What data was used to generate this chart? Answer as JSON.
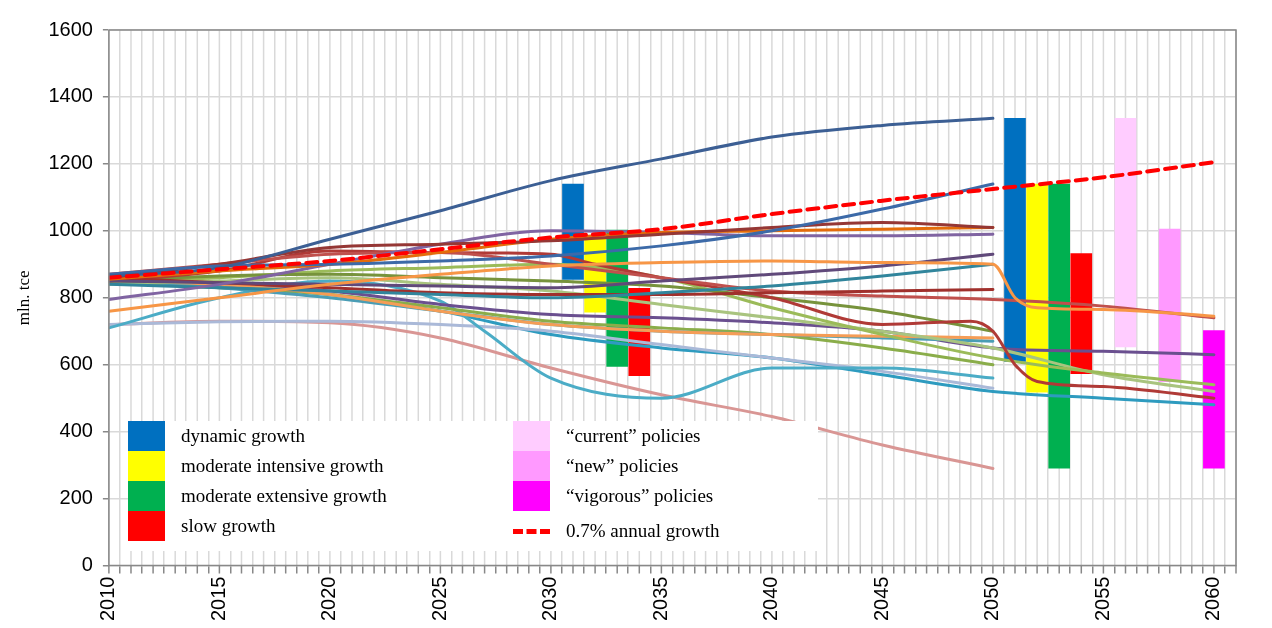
{
  "chart_data": {
    "type": "line",
    "ylabel": "mln. tce",
    "xlim": [
      2010,
      2061
    ],
    "ylim": [
      0,
      1600
    ],
    "yticks": [
      0,
      200,
      400,
      600,
      800,
      1000,
      1200,
      1400,
      1600
    ],
    "xticks": [
      2010,
      {
        "value": 2011,
        "label": null
      },
      {
        "value": 2012,
        "label": null
      },
      {
        "value": 2013,
        "label": null
      },
      {
        "value": 2014,
        "label": null
      },
      2015,
      {
        "value": 2016,
        "label": null
      },
      {
        "value": 2017,
        "label": null
      },
      {
        "value": 2018,
        "label": null
      },
      {
        "value": 2019,
        "label": null
      },
      2020,
      {
        "value": 2021,
        "label": null
      },
      {
        "value": 2022,
        "label": null
      },
      {
        "value": 2023,
        "label": null
      },
      {
        "value": 2024,
        "label": null
      },
      2025,
      {
        "value": 2026,
        "label": null
      },
      {
        "value": 2027,
        "label": null
      },
      {
        "value": 2028,
        "label": null
      },
      {
        "value": 2029,
        "label": null
      },
      2030,
      {
        "value": 2031,
        "label": null
      },
      {
        "value": 2032,
        "label": null
      },
      {
        "value": 2033,
        "label": null
      },
      {
        "value": 2034,
        "label": null
      },
      2035,
      {
        "value": 2036,
        "label": null
      },
      {
        "value": 2037,
        "label": null
      },
      {
        "value": 2038,
        "label": null
      },
      {
        "value": 2039,
        "label": null
      },
      2040,
      {
        "value": 2041,
        "label": null
      },
      {
        "value": 2042,
        "label": null
      },
      {
        "value": 2043,
        "label": null
      },
      {
        "value": 2044,
        "label": null
      },
      2045,
      {
        "value": 2046,
        "label": null
      },
      {
        "value": 2047,
        "label": null
      },
      {
        "value": 2048,
        "label": null
      },
      {
        "value": 2049,
        "label": null
      },
      2050,
      {
        "value": 2051,
        "label": null
      },
      {
        "value": 2052,
        "label": null
      },
      {
        "value": 2053,
        "label": null
      },
      {
        "value": 2054,
        "label": null
      },
      2055,
      {
        "value": 2056,
        "label": null
      },
      {
        "value": 2057,
        "label": null
      },
      {
        "value": 2058,
        "label": null
      },
      {
        "value": 2059,
        "label": null
      },
      2060,
      {
        "value": 2061,
        "label": null
      }
    ],
    "grid": true,
    "legend": "bottom left",
    "marker": "none",
    "series": [
      {
        "type": "bar",
        "name": "dynamic growth",
        "color": "#0070c0",
        "x": [
          2031,
          2051
        ],
        "base": [
          855,
          610
        ],
        "values": [
          285,
          726
        ]
      },
      {
        "type": "bar",
        "name": "moderate intensive growth",
        "color": "#ffff00",
        "x": [
          2032,
          2052
        ],
        "base": [
          757,
          518
        ],
        "values": [
          221,
          622
        ]
      },
      {
        "type": "bar",
        "name": "moderate extensive growth",
        "color": "#00b050",
        "x": [
          2033,
          2053
        ],
        "base": [
          595,
          291
        ],
        "values": [
          407,
          849
        ]
      },
      {
        "type": "bar",
        "name": "slow growth",
        "color": "#ff0000",
        "x": [
          2034,
          2054
        ],
        "base": [
          567,
          573
        ],
        "values": [
          261,
          359
        ]
      },
      {
        "type": "bar",
        "name": "“current” policies",
        "color": "#ffccff",
        "x": [
          2056
        ],
        "base": [
          653
        ],
        "values": [
          683
        ]
      },
      {
        "type": "bar",
        "name": "“new” policies",
        "color": "#ff99ff",
        "x": [
          2058
        ],
        "base": [
          549
        ],
        "values": [
          456
        ]
      },
      {
        "type": "bar",
        "name": "“vigorous” policies",
        "color": "#ff00ff",
        "x": [
          2060
        ],
        "base": [
          291
        ],
        "values": [
          411
        ]
      },
      {
        "name": "0.7% annual growth",
        "color": "#ff0000",
        "line_style": "dashed",
        "x": [
          2010,
          2015,
          2020,
          2025,
          2030,
          2035,
          2040,
          2045,
          2050,
          2055,
          2060
        ],
        "values": [
          860,
          885,
          910,
          945,
          980,
          1005,
          1050,
          1090,
          1125,
          1160,
          1205
        ]
      },
      {
        "type": "line",
        "color": "#3c5f94",
        "x": [
          2010,
          2015,
          2020,
          2025,
          2030,
          2035,
          2040,
          2045,
          2050
        ],
        "values": [
          865,
          890,
          975,
          1060,
          1150,
          1215,
          1280,
          1315,
          1336
        ]
      },
      {
        "type": "line",
        "color": "#3c6aa8",
        "x": [
          2010,
          2015,
          2020,
          2025,
          2030,
          2035,
          2040,
          2045,
          2050
        ],
        "values": [
          870,
          895,
          900,
          910,
          925,
          955,
          1000,
          1065,
          1140
        ]
      },
      {
        "type": "line",
        "color": "#953735",
        "x": [
          2010,
          2015,
          2020,
          2025,
          2030,
          2035,
          2040,
          2045,
          2050
        ],
        "values": [
          860,
          900,
          950,
          960,
          970,
          990,
          1010,
          1025,
          1010
        ]
      },
      {
        "type": "line",
        "color": "#e46c0a",
        "x": [
          2010,
          2015,
          2020,
          2025,
          2030,
          2035,
          2040,
          2045,
          2050
        ],
        "values": [
          855,
          880,
          900,
          935,
          975,
          995,
          1000,
          1005,
          1010
        ]
      },
      {
        "type": "line",
        "color": "#8064a2",
        "x": [
          2010,
          2015,
          2020,
          2025,
          2030,
          2035,
          2040,
          2045,
          2050
        ],
        "values": [
          795,
          840,
          900,
          960,
          1000,
          995,
          985,
          985,
          990
        ]
      },
      {
        "type": "line",
        "color": "#f79646",
        "x": [
          2010,
          2015,
          2020,
          2025,
          2030,
          2035,
          2040,
          2045,
          2050,
          2051,
          2052,
          2055,
          2060
        ],
        "values": [
          760,
          800,
          840,
          870,
          895,
          905,
          910,
          905,
          900,
          800,
          770,
          765,
          745
        ]
      },
      {
        "type": "line",
        "color": "#60497a",
        "x": [
          2010,
          2015,
          2020,
          2025,
          2030,
          2035,
          2040,
          2045,
          2050
        ],
        "values": [
          850,
          845,
          840,
          835,
          830,
          850,
          870,
          895,
          930
        ]
      },
      {
        "type": "line",
        "color": "#31859c",
        "x": [
          2010,
          2015,
          2020,
          2025,
          2030,
          2035,
          2040,
          2045,
          2050
        ],
        "values": [
          840,
          830,
          820,
          810,
          800,
          815,
          835,
          865,
          900
        ]
      },
      {
        "type": "line",
        "color": "#a0302c",
        "x": [
          2010,
          2015,
          2020,
          2025,
          2030,
          2035,
          2040,
          2045,
          2050
        ],
        "values": [
          860,
          845,
          830,
          815,
          810,
          810,
          815,
          820,
          825
        ]
      },
      {
        "type": "line",
        "color": "#c0504d",
        "x": [
          2010,
          2015,
          2020,
          2025,
          2030,
          2035,
          2040,
          2045,
          2050,
          2055,
          2060
        ],
        "values": [
          870,
          900,
          930,
          935,
          900,
          860,
          820,
          805,
          795,
          775,
          740
        ]
      },
      {
        "type": "line",
        "color": "#b03a36",
        "x": [
          2010,
          2015,
          2020,
          2025,
          2030,
          2032,
          2035,
          2040,
          2045,
          2049,
          2050,
          2051,
          2052,
          2055,
          2060
        ],
        "values": [
          850,
          880,
          940,
          935,
          930,
          900,
          860,
          800,
          720,
          730,
          700,
          600,
          550,
          535,
          500
        ]
      },
      {
        "type": "line",
        "color": "#77933c",
        "x": [
          2010,
          2015,
          2020,
          2025,
          2030,
          2035,
          2040,
          2045,
          2050
        ],
        "values": [
          850,
          865,
          870,
          860,
          850,
          835,
          800,
          760,
          700
        ]
      },
      {
        "type": "line",
        "color": "#9bbb59",
        "x": [
          2010,
          2015,
          2020,
          2025,
          2030,
          2035,
          2040,
          2045,
          2050,
          2055,
          2060
        ],
        "values": [
          845,
          860,
          880,
          890,
          900,
          860,
          770,
          690,
          620,
          575,
          540
        ]
      },
      {
        "type": "line",
        "color": "#a9c47f",
        "x": [
          2010,
          2015,
          2020,
          2025,
          2030,
          2035,
          2040,
          2045,
          2050,
          2055,
          2060
        ],
        "values": [
          840,
          850,
          860,
          840,
          820,
          780,
          740,
          700,
          650,
          570,
          520
        ]
      },
      {
        "type": "line",
        "color": "#f59d56",
        "x": [
          2010,
          2015,
          2020,
          2025,
          2030,
          2035,
          2040,
          2045,
          2050
        ],
        "values": [
          850,
          840,
          810,
          760,
          720,
          700,
          690,
          685,
          680
        ]
      },
      {
        "type": "line",
        "color": "#4a9db5",
        "x": [
          2010,
          2015,
          2020,
          2025,
          2030,
          2035,
          2040,
          2045,
          2050
        ],
        "values": [
          855,
          830,
          800,
          760,
          720,
          700,
          690,
          680,
          670
        ]
      },
      {
        "type": "line",
        "color": "#6a4f8f",
        "x": [
          2010,
          2015,
          2020,
          2025,
          2030,
          2035,
          2040,
          2045,
          2050,
          2055,
          2060
        ],
        "values": [
          860,
          840,
          820,
          780,
          750,
          740,
          725,
          700,
          650,
          640,
          630
        ]
      },
      {
        "type": "line",
        "color": "#8aad4a",
        "x": [
          2010,
          2015,
          2020,
          2025,
          2030,
          2035,
          2040,
          2045,
          2050
        ],
        "values": [
          845,
          830,
          810,
          770,
          730,
          710,
          690,
          650,
          600
        ]
      },
      {
        "type": "line",
        "color": "#4bacc6",
        "x": [
          2010,
          2015,
          2020,
          2025,
          2027,
          2030,
          2035,
          2040,
          2045,
          2050
        ],
        "values": [
          710,
          800,
          850,
          790,
          700,
          560,
          500,
          590,
          590,
          560
        ]
      },
      {
        "type": "line",
        "color": "#aab9d8",
        "x": [
          2010,
          2015,
          2020,
          2025,
          2030,
          2035,
          2040,
          2045,
          2050
        ],
        "values": [
          720,
          728,
          730,
          720,
          700,
          660,
          620,
          580,
          530
        ]
      },
      {
        "type": "line",
        "color": "#2e9bbf",
        "x": [
          2010,
          2015,
          2020,
          2025,
          2030,
          2035,
          2040,
          2045,
          2050,
          2055,
          2060
        ],
        "values": [
          850,
          835,
          810,
          760,
          690,
          650,
          620,
          570,
          520,
          500,
          480
        ]
      },
      {
        "type": "line",
        "color": "#d99694",
        "x": [
          2010,
          2015,
          2020,
          2025,
          2030,
          2035,
          2040,
          2045,
          2050
        ],
        "values": [
          720,
          730,
          725,
          680,
          590,
          510,
          445,
          360,
          290
        ]
      }
    ]
  }
}
